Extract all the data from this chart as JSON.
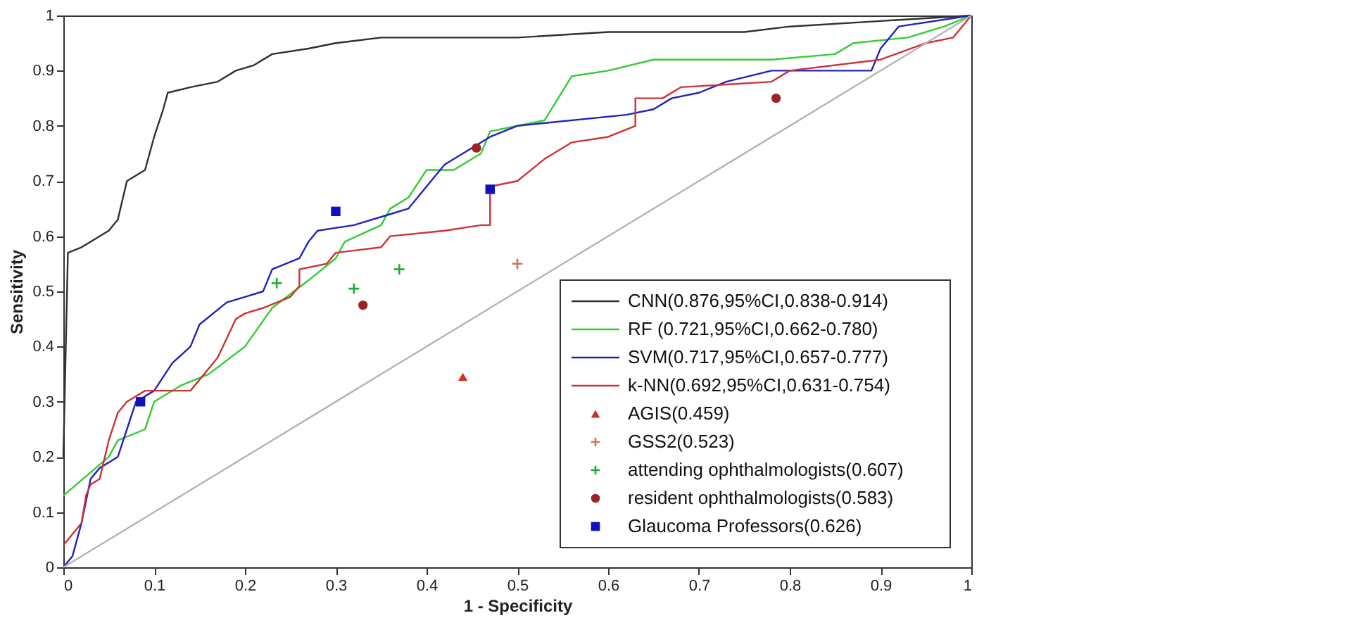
{
  "chart_data": {
    "type": "line",
    "xlabel": "1 - Specificity",
    "ylabel": "Sensitivity",
    "xlim": [
      0,
      1
    ],
    "ylim": [
      0,
      1
    ],
    "xticks": [
      0,
      0.1,
      0.2,
      0.3,
      0.4,
      0.5,
      0.6,
      0.7,
      0.8,
      0.9,
      1
    ],
    "yticks": [
      0,
      0.1,
      0.2,
      0.3,
      0.4,
      0.5,
      0.6,
      0.7,
      0.8,
      0.9,
      1
    ],
    "grid": false,
    "legend": "bottom right",
    "line_style": "solid",
    "series": [
      {
        "name": "CNN(0.876,95%CI,0.838-0.914)",
        "color": "#303030",
        "marker": "none",
        "x": [
          0,
          0.005,
          0.02,
          0.03,
          0.05,
          0.06,
          0.07,
          0.09,
          0.1,
          0.11,
          0.115,
          0.14,
          0.17,
          0.19,
          0.21,
          0.23,
          0.27,
          0.3,
          0.35,
          0.5,
          0.6,
          0.75,
          0.8,
          0.9,
          1
        ],
        "values": [
          0.2,
          0.57,
          0.58,
          0.59,
          0.61,
          0.63,
          0.7,
          0.72,
          0.78,
          0.83,
          0.86,
          0.87,
          0.88,
          0.9,
          0.91,
          0.93,
          0.94,
          0.95,
          0.96,
          0.96,
          0.97,
          0.97,
          0.98,
          0.99,
          1
        ]
      },
      {
        "name": "RF (0.721,95%CI,0.662-0.780)",
        "color": "#33cc33",
        "marker": "none",
        "x": [
          0,
          0.05,
          0.06,
          0.09,
          0.1,
          0.13,
          0.16,
          0.2,
          0.23,
          0.27,
          0.3,
          0.31,
          0.35,
          0.36,
          0.38,
          0.4,
          0.43,
          0.46,
          0.47,
          0.5,
          0.53,
          0.56,
          0.6,
          0.65,
          0.78,
          0.85,
          0.87,
          0.93,
          0.97,
          1
        ],
        "values": [
          0.13,
          0.2,
          0.23,
          0.25,
          0.3,
          0.33,
          0.35,
          0.4,
          0.47,
          0.52,
          0.56,
          0.59,
          0.62,
          0.65,
          0.67,
          0.72,
          0.72,
          0.75,
          0.79,
          0.8,
          0.81,
          0.89,
          0.9,
          0.92,
          0.92,
          0.93,
          0.95,
          0.96,
          0.98,
          1
        ]
      },
      {
        "name": "SVM(0.717,95%CI,0.657-0.777)",
        "color": "#2222bb",
        "marker": "none",
        "x": [
          0,
          0.01,
          0.02,
          0.03,
          0.04,
          0.06,
          0.07,
          0.08,
          0.1,
          0.12,
          0.14,
          0.15,
          0.18,
          0.2,
          0.22,
          0.23,
          0.26,
          0.27,
          0.28,
          0.32,
          0.36,
          0.38,
          0.4,
          0.42,
          0.45,
          0.47,
          0.5,
          0.62,
          0.65,
          0.67,
          0.7,
          0.73,
          0.78,
          0.89,
          0.9,
          0.92,
          1
        ],
        "values": [
          0,
          0.02,
          0.08,
          0.16,
          0.18,
          0.2,
          0.25,
          0.3,
          0.32,
          0.37,
          0.4,
          0.44,
          0.48,
          0.49,
          0.5,
          0.54,
          0.56,
          0.59,
          0.61,
          0.62,
          0.64,
          0.65,
          0.69,
          0.73,
          0.76,
          0.78,
          0.8,
          0.82,
          0.83,
          0.85,
          0.86,
          0.88,
          0.9,
          0.9,
          0.94,
          0.98,
          1
        ]
      },
      {
        "name": "k-NN(0.692,95%CI,0.631-0.754)",
        "color": "#cc3333",
        "marker": "none",
        "x": [
          0,
          0.02,
          0.025,
          0.03,
          0.04,
          0.05,
          0.06,
          0.07,
          0.09,
          0.14,
          0.17,
          0.19,
          0.2,
          0.22,
          0.25,
          0.26,
          0.26,
          0.29,
          0.3,
          0.35,
          0.36,
          0.42,
          0.46,
          0.47,
          0.47,
          0.5,
          0.53,
          0.56,
          0.6,
          0.63,
          0.63,
          0.66,
          0.68,
          0.78,
          0.8,
          0.9,
          0.95,
          0.98,
          1
        ],
        "values": [
          0.04,
          0.08,
          0.13,
          0.15,
          0.16,
          0.23,
          0.28,
          0.3,
          0.32,
          0.32,
          0.38,
          0.45,
          0.46,
          0.47,
          0.49,
          0.51,
          0.54,
          0.55,
          0.57,
          0.58,
          0.6,
          0.61,
          0.62,
          0.62,
          0.69,
          0.7,
          0.74,
          0.77,
          0.78,
          0.8,
          0.85,
          0.85,
          0.87,
          0.88,
          0.9,
          0.92,
          0.95,
          0.96,
          1
        ]
      },
      {
        "name": "AGIS(0.459)",
        "type": "scatter",
        "color": "#cc3322",
        "marker": "triangle",
        "x": [
          0.44
        ],
        "values": [
          0.345
        ]
      },
      {
        "name": "GSS2(0.523)",
        "type": "scatter",
        "color": "#c87850",
        "marker": "cross",
        "x": [
          0.5
        ],
        "values": [
          0.55
        ]
      },
      {
        "name": "attending ophthalmologists(0.607)",
        "type": "scatter",
        "color": "#22aa33",
        "marker": "cross",
        "x": [
          0.235,
          0.32,
          0.37
        ],
        "values": [
          0.515,
          0.505,
          0.54
        ]
      },
      {
        "name": "resident ophthalmologists(0.583)",
        "type": "scatter",
        "color": "#9b2226",
        "marker": "circle",
        "x": [
          0.33,
          0.455,
          0.785
        ],
        "values": [
          0.475,
          0.76,
          0.85
        ]
      },
      {
        "name": "Glaucoma Professors(0.626)",
        "type": "scatter",
        "color": "#1010c0",
        "marker": "square",
        "x": [
          0.085,
          0.3,
          0.47
        ],
        "values": [
          0.3,
          0.645,
          0.685
        ]
      },
      {
        "color": "#b4b4b4",
        "x": [
          0,
          1
        ],
        "values": [
          0,
          1
        ]
      }
    ]
  }
}
